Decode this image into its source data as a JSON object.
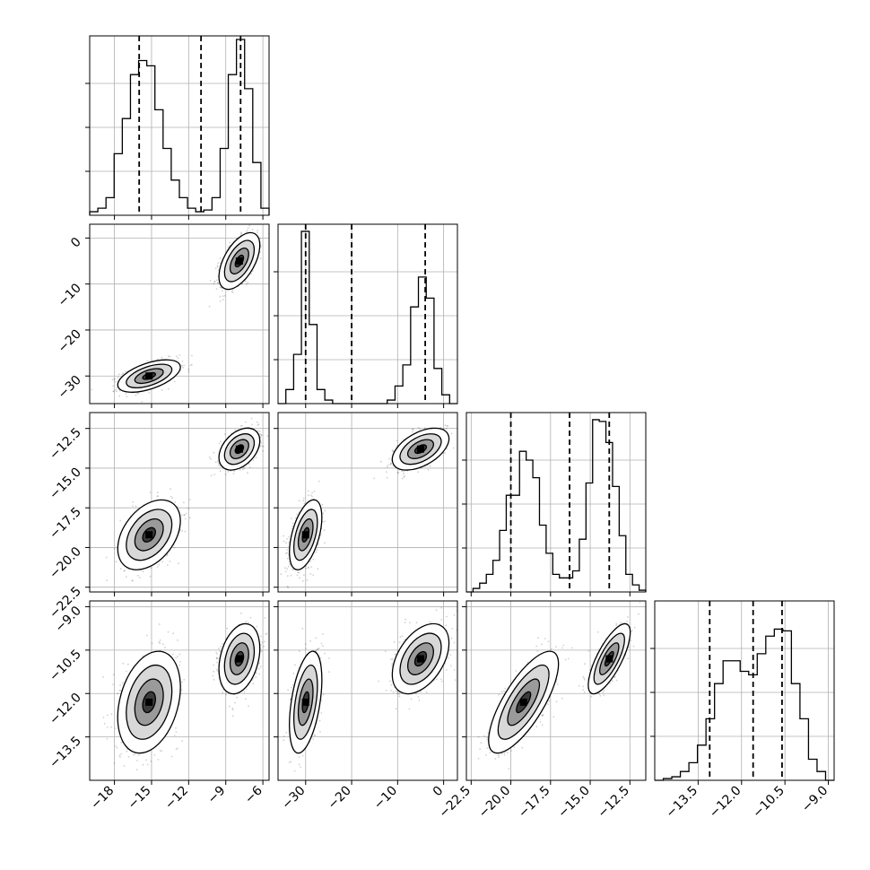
{
  "chart_data": {
    "type": "corner",
    "grid": true,
    "legend": "none",
    "parameters": [
      {
        "range": [
          -20,
          -5.5
        ],
        "ticks": [
          -18,
          -15,
          -12,
          -9,
          -6
        ],
        "tick_labels": [
          "−18",
          "−15",
          "−12",
          "−9",
          "−6"
        ],
        "quantiles": [
          -16.0,
          -11.0,
          -7.8
        ],
        "hist": [
          0.02,
          0.04,
          0.1,
          0.35,
          0.55,
          0.8,
          0.88,
          0.85,
          0.6,
          0.38,
          0.2,
          0.1,
          0.04,
          0.02,
          0.03,
          0.1,
          0.38,
          0.8,
          1.0,
          0.72,
          0.3,
          0.04
        ],
        "modes": [
          {
            "mean": -15.2,
            "sd": 1.15,
            "w": 0.47
          },
          {
            "mean": -7.9,
            "sd": 0.75,
            "w": 0.53
          }
        ]
      },
      {
        "range": [
          -36,
          3
        ],
        "ticks": [
          -30,
          -20,
          -10,
          0
        ],
        "tick_labels": [
          "−30",
          "−20",
          "−10",
          "0"
        ],
        "quantiles": [
          -30.0,
          -20.0,
          -4.0
        ],
        "hist": [
          0.0,
          0.08,
          0.28,
          0.98,
          0.45,
          0.08,
          0.02,
          0.0,
          0.0,
          0.0,
          0.0,
          0.0,
          0.0,
          0.0,
          0.02,
          0.1,
          0.22,
          0.55,
          0.72,
          0.6,
          0.2,
          0.05,
          0.0
        ],
        "modes": [
          {
            "mean": -30.0,
            "sd": 1.6,
            "w": 0.47
          },
          {
            "mean": -5.0,
            "sd": 2.8,
            "w": 0.53
          }
        ]
      },
      {
        "range": [
          -22.8,
          -11.5
        ],
        "ticks": [
          -22.5,
          -20.0,
          -17.5,
          -15.0,
          -12.5
        ],
        "tick_labels": [
          "−22.5",
          "−20.0",
          "−17.5",
          "−15.0",
          "−12.5"
        ],
        "quantiles": [
          -20.0,
          -16.3,
          -13.8
        ],
        "hist": [
          0.0,
          0.02,
          0.05,
          0.1,
          0.18,
          0.35,
          0.55,
          0.55,
          0.8,
          0.75,
          0.65,
          0.38,
          0.22,
          0.1,
          0.08,
          0.08,
          0.12,
          0.3,
          0.62,
          0.98,
          0.97,
          0.85,
          0.6,
          0.32,
          0.1,
          0.04,
          0.01
        ],
        "modes": [
          {
            "mean": -19.2,
            "sd": 1.0,
            "w": 0.47
          },
          {
            "mean": -13.8,
            "sd": 0.6,
            "w": 0.53
          }
        ]
      },
      {
        "range": [
          -15.0,
          -8.8
        ],
        "ticks": [
          -13.5,
          -12.0,
          -10.5,
          -9.0
        ],
        "tick_labels": [
          "−13.5",
          "−12.0",
          "−10.5",
          "−9.0"
        ],
        "quantiles": [
          -13.1,
          -11.6,
          -10.6
        ],
        "hist": [
          0.0,
          0.01,
          0.02,
          0.05,
          0.1,
          0.2,
          0.35,
          0.55,
          0.68,
          0.68,
          0.62,
          0.6,
          0.72,
          0.82,
          0.86,
          0.85,
          0.55,
          0.35,
          0.12,
          0.05,
          0.0
        ],
        "modes": [
          {
            "mean": -12.3,
            "sd": 0.8,
            "w": 0.47
          },
          {
            "mean": -10.8,
            "sd": 0.55,
            "w": 0.53
          }
        ]
      }
    ],
    "correlation": [
      [
        1.0,
        0.995,
        0.93,
        0.65
      ],
      [
        0.995,
        1.0,
        0.94,
        0.66
      ],
      [
        0.93,
        0.94,
        1.0,
        0.7
      ],
      [
        0.65,
        0.66,
        0.7,
        1.0
      ]
    ],
    "within_mode_correlation": [
      [
        1.0,
        0.55,
        0.4,
        0.3
      ],
      [
        0.55,
        1.0,
        0.5,
        0.45
      ],
      [
        0.4,
        0.5,
        1.0,
        0.75
      ],
      [
        0.3,
        0.45,
        0.75,
        1.0
      ]
    ]
  }
}
